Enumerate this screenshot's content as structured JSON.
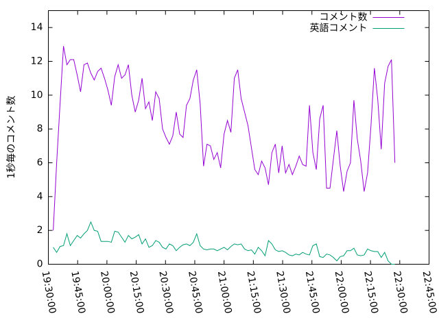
{
  "chart_data": {
    "type": "line",
    "y_label": "1秒毎のコメント数",
    "legend": "top-right",
    "ylim": [
      0,
      15
    ],
    "yticks": [
      0,
      2,
      4,
      6,
      8,
      10,
      12,
      14
    ],
    "xlim": [
      "19:30:00",
      "22:45:00"
    ],
    "xticks": [
      "19:30:00",
      "19:45:00",
      "20:00:00",
      "20:15:00",
      "20:30:00",
      "20:45:00",
      "21:00:00",
      "21:15:00",
      "21:30:00",
      "21:45:00",
      "22:00:00",
      "22:15:00",
      "22:30:00",
      "22:45:00"
    ],
    "x": [
      "19:32:30",
      "19:34:15",
      "19:36:00",
      "19:37:45",
      "19:39:30",
      "19:41:15",
      "19:43:00",
      "19:44:45",
      "19:46:30",
      "19:48:15",
      "19:50:00",
      "19:51:45",
      "19:53:30",
      "19:55:15",
      "19:57:00",
      "19:58:45",
      "20:00:30",
      "20:02:15",
      "20:04:00",
      "20:05:45",
      "20:07:30",
      "20:09:15",
      "20:11:00",
      "20:12:45",
      "20:14:30",
      "20:16:15",
      "20:18:00",
      "20:19:45",
      "20:21:30",
      "20:23:15",
      "20:25:00",
      "20:26:45",
      "20:28:30",
      "20:30:15",
      "20:32:00",
      "20:33:45",
      "20:35:30",
      "20:37:15",
      "20:39:00",
      "20:40:45",
      "20:42:30",
      "20:44:15",
      "20:46:00",
      "20:47:45",
      "20:49:30",
      "20:51:15",
      "20:53:00",
      "20:54:45",
      "20:56:30",
      "20:58:15",
      "21:00:00",
      "21:01:45",
      "21:03:30",
      "21:05:15",
      "21:07:00",
      "21:08:45",
      "21:10:30",
      "21:12:15",
      "21:14:00",
      "21:15:45",
      "21:17:30",
      "21:19:15",
      "21:21:00",
      "21:22:45",
      "21:24:30",
      "21:26:15",
      "21:28:00",
      "21:29:45",
      "21:31:30",
      "21:33:15",
      "21:35:00",
      "21:36:45",
      "21:38:30",
      "21:40:15",
      "21:42:00",
      "21:43:45",
      "21:45:30",
      "21:47:15",
      "21:49:00",
      "21:50:45",
      "21:52:30",
      "21:54:15",
      "21:56:00",
      "21:57:45",
      "21:59:30",
      "22:01:15",
      "22:03:00",
      "22:04:45",
      "22:06:30",
      "22:08:15",
      "22:10:00",
      "22:11:45",
      "22:13:30",
      "22:15:15",
      "22:17:00",
      "22:18:45",
      "22:20:30",
      "22:22:15",
      "22:24:00",
      "22:25:45",
      "22:27:30"
    ],
    "series": [
      {
        "name": "コメント数",
        "color": "#9400d3",
        "values": [
          2,
          6,
          9.5,
          12.9,
          11.8,
          12.1,
          12.1,
          11.2,
          10.2,
          11.8,
          11.9,
          11.3,
          10.9,
          11.4,
          11.6,
          11,
          10.3,
          9.4,
          11.1,
          11.8,
          11,
          11.2,
          11.8,
          10,
          9,
          9.7,
          11,
          9.2,
          9.6,
          8.5,
          10.2,
          9.8,
          8,
          7.5,
          7.1,
          7.6,
          9,
          7.7,
          7.5,
          9.4,
          9.8,
          10.9,
          11.5,
          9.5,
          5.8,
          7.1,
          7,
          6.2,
          6.6,
          5.7,
          7.7,
          8.5,
          7.8,
          11,
          11.5,
          9.8,
          9,
          8.2,
          6.9,
          5.6,
          5.3,
          6.1,
          5.7,
          4.7,
          6.6,
          7.1,
          5.4,
          7,
          5.4,
          5.9,
          5.3,
          5.8,
          6.4,
          5.9,
          5.8,
          9.4,
          6.6,
          5.6,
          8.6,
          9.4,
          4.5,
          4.5,
          6.2,
          7.9,
          5.8,
          4.3,
          5.5,
          6,
          9.7,
          7.4,
          6.1,
          4.3,
          5.4,
          8.2,
          11.6,
          9.7,
          6.8,
          10.7,
          11.7,
          12.1,
          6
        ]
      },
      {
        "name": "英語コメント",
        "color": "#009e73",
        "values": [
          1.0,
          0.7,
          1.05,
          1.1,
          1.8,
          1.1,
          1.4,
          1.7,
          1.55,
          1.8,
          2.0,
          2.5,
          2.0,
          1.95,
          1.35,
          1.35,
          1.35,
          1.3,
          1.95,
          1.9,
          1.6,
          1.3,
          1.7,
          1.5,
          1.6,
          1.75,
          1.2,
          1.5,
          1.0,
          1.1,
          1.4,
          1.3,
          1.0,
          0.9,
          1.2,
          1.1,
          0.8,
          1.0,
          1.15,
          1.2,
          1.1,
          1.3,
          1.8,
          1.1,
          0.9,
          0.85,
          0.9,
          0.9,
          0.8,
          0.9,
          1.0,
          0.85,
          1.05,
          1.2,
          1.15,
          1.2,
          0.9,
          0.8,
          0.85,
          0.6,
          1.0,
          0.8,
          0.5,
          1.4,
          1.2,
          0.85,
          0.75,
          0.8,
          0.7,
          0.55,
          0.5,
          0.6,
          0.55,
          0.7,
          0.6,
          0.55,
          1.1,
          1.2,
          0.45,
          0.4,
          0.6,
          0.55,
          0.4,
          0.2,
          0.45,
          0.5,
          0.8,
          0.8,
          0.95,
          0.55,
          0.5,
          0.55,
          0.9,
          0.8,
          0.75,
          0.75,
          0.4,
          0.7,
          0.2,
          0.0,
          0.0
        ]
      }
    ]
  }
}
